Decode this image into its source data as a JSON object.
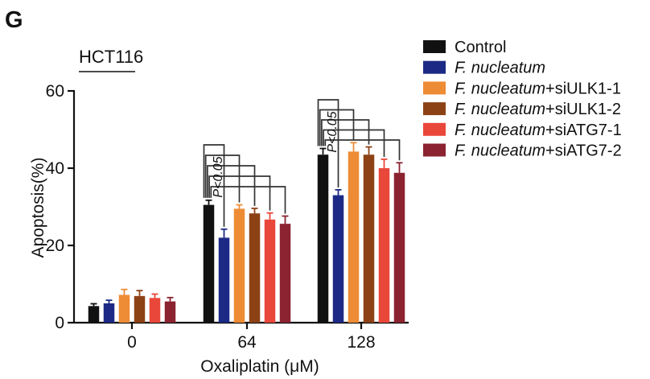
{
  "panel_label": "G",
  "cell_line": "HCT116",
  "colors": {
    "axis": "#111111",
    "bracket": "#333333",
    "series": [
      "#111111",
      "#1c2a86",
      "#ee8c35",
      "#8d4216",
      "#e9473a",
      "#8b2330"
    ]
  },
  "significance_label": "P<0.05",
  "chart_data": {
    "type": "bar",
    "title": "",
    "xlabel": "Oxaliplatin (μM)",
    "ylabel": "Apoptosis(%)",
    "ylim": [
      0,
      60
    ],
    "yticks": [
      0,
      20,
      40,
      60
    ],
    "categories": [
      "0",
      "64",
      "128"
    ],
    "legend_position": "top-right",
    "error_bars": true,
    "series": [
      {
        "name": "Control",
        "name_italic": "",
        "name_suffix": "Control",
        "values": [
          4.3,
          30.5,
          43.5
        ],
        "errors": [
          0.6,
          1.2,
          1.6
        ]
      },
      {
        "name": "F. nucleatum",
        "name_italic": "F. nucleatum",
        "name_suffix": "",
        "values": [
          5.0,
          22.0,
          33.0
        ],
        "errors": [
          0.8,
          2.2,
          1.4
        ]
      },
      {
        "name": "F. nucleatum+siULK1-1",
        "name_italic": "F. nucleatum",
        "name_suffix": "+siULK1-1",
        "values": [
          7.2,
          29.5,
          44.3
        ],
        "errors": [
          1.4,
          1.0,
          2.3
        ]
      },
      {
        "name": "F. nucleatum+siULK1-2",
        "name_italic": "F. nucleatum",
        "name_suffix": "+siULK1-2",
        "values": [
          6.9,
          28.3,
          43.5
        ],
        "errors": [
          1.4,
          1.3,
          2.0
        ]
      },
      {
        "name": "F. nucleatum+siATG7-1",
        "name_italic": "F. nucleatum",
        "name_suffix": "+siATG7-1",
        "values": [
          6.4,
          26.7,
          40.0
        ],
        "errors": [
          1.0,
          1.7,
          2.3
        ]
      },
      {
        "name": "F. nucleatum+siATG7-2",
        "name_italic": "F. nucleatum",
        "name_suffix": "+siATG7-2",
        "values": [
          5.5,
          25.6,
          38.8
        ],
        "errors": [
          1.0,
          2.0,
          2.6
        ]
      }
    ]
  }
}
